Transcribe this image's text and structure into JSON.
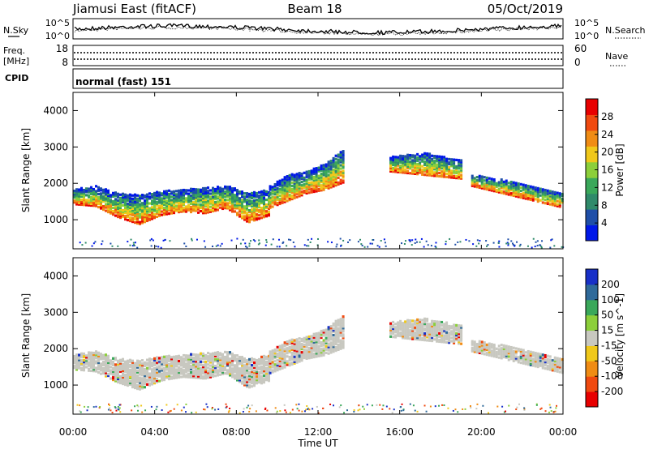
{
  "header": {
    "station": "Jiamusi East (fitACF)",
    "beam": "Beam 18",
    "date": "05/Oct/2019"
  },
  "noise_panel": {
    "left_label": "N.Sky",
    "right_label": "N.Search",
    "ytick_top": "10^5",
    "ytick_bottom": "10^0"
  },
  "freq_panel": {
    "left_label": "Freq.",
    "left_unit": "[MHz]",
    "left_ticks": [
      "18",
      "8"
    ],
    "right_label": "Nave",
    "right_ticks": [
      "60",
      "0"
    ]
  },
  "cpid": {
    "label": "CPID",
    "value": "normal (fast) 151"
  },
  "colors": {
    "power_scale": [
      "#0018e8",
      "#1f4fa8",
      "#2f8a6a",
      "#3aa85a",
      "#8ccf3a",
      "#f0c81a",
      "#f08c14",
      "#f04a10",
      "#e80000"
    ],
    "velocity_scale": [
      "#e80000",
      "#f04a10",
      "#f08c14",
      "#f0c81a",
      "#c8c8c0",
      "#8ccf3a",
      "#3aa85a",
      "#2f6a9a",
      "#1830c8"
    ]
  },
  "chart_data": [
    {
      "type": "heatmap",
      "name": "power",
      "ylabel": "Slant Range [km]",
      "ylim": [
        200,
        4500
      ],
      "yticks": [
        "1000",
        "2000",
        "3000",
        "4000"
      ],
      "colorbar_label": "Power [dB]",
      "colorbar_ticks": [
        "4",
        "8",
        "12",
        "16",
        "20",
        "24",
        "28"
      ],
      "colorbar_range": [
        0,
        32
      ],
      "echo_bands": [
        {
          "x_start": 0.0,
          "x_end": 9.6,
          "range_low": [
            1400,
            1350,
            1050,
            850,
            1100,
            1200,
            1150,
            1300,
            900,
            1100
          ],
          "range_high": [
            1800,
            1900,
            1700,
            1650,
            1750,
            1800,
            1850,
            1900,
            1700,
            1800
          ]
        },
        {
          "x_start": 9.6,
          "x_end": 13.2,
          "range_low": [
            1300,
            1500,
            1700,
            1800,
            2000
          ],
          "range_high": [
            1900,
            2200,
            2300,
            2500,
            2900
          ]
        },
        {
          "x_start": 15.5,
          "x_end": 19.0,
          "range_low": [
            2300,
            2200,
            2100
          ],
          "range_high": [
            2700,
            2800,
            2600
          ]
        },
        {
          "x_start": 19.5,
          "x_end": 24.0,
          "range_low": [
            1900,
            1600,
            1300
          ],
          "range_high": [
            2200,
            2000,
            1700
          ]
        }
      ]
    },
    {
      "type": "heatmap",
      "name": "velocity",
      "ylabel": "Slant Range [km]",
      "xlabel": "Time UT",
      "ylim": [
        200,
        4500
      ],
      "yticks": [
        "1000",
        "2000",
        "3000",
        "4000"
      ],
      "xticks": [
        "00:00",
        "04:00",
        "08:00",
        "12:00",
        "16:00",
        "20:00",
        "00:00"
      ],
      "xlim": [
        0,
        24
      ],
      "colorbar_label": "Velocity [m s^-1]",
      "colorbar_ticks": [
        "200",
        "100",
        "50",
        "15",
        "-15",
        "-50",
        "-100",
        "-200"
      ]
    }
  ]
}
